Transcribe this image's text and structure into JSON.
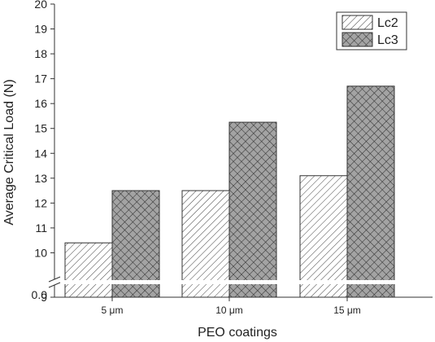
{
  "chart_data": {
    "type": "bar",
    "xlabel": "PEO coatings",
    "ylabel": "Average Critical Load (N)",
    "categories": [
      "5 μm",
      "10 μm",
      "15 μm"
    ],
    "series": [
      {
        "name": "Lc2",
        "values": [
          10.4,
          12.5,
          13.1
        ],
        "pattern": "diagonal-hatch",
        "fill_color": "#ffffff"
      },
      {
        "name": "Lc3",
        "values": [
          12.5,
          15.25,
          16.7
        ],
        "pattern": "crosshatch",
        "fill_color": "#9a9a9a"
      }
    ],
    "y_axis": {
      "broken": true,
      "break_between": [
        0.0,
        9
      ],
      "lower_ticks": [
        0.0
      ],
      "upper_ticks": [
        9,
        10,
        11,
        12,
        13,
        14,
        15,
        16,
        17,
        18,
        19,
        20
      ],
      "upper_range": [
        9,
        20
      ]
    },
    "legend_position": "top-right",
    "grid": false
  },
  "colors": {
    "axis": "#333333",
    "bar_stroke": "#333333",
    "hatch": "#444444"
  }
}
